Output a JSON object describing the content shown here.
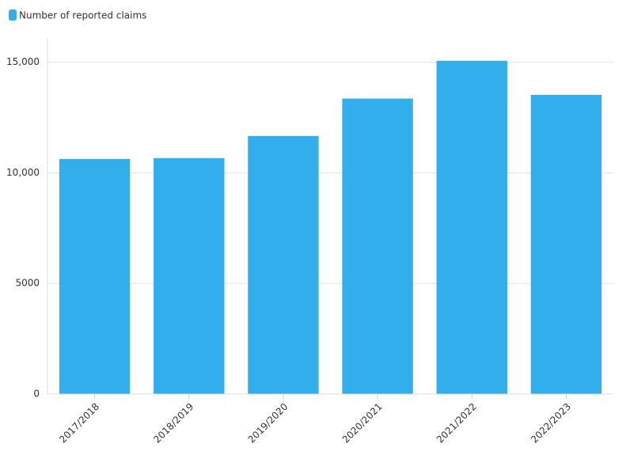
{
  "chart_data": {
    "type": "bar",
    "series": [
      {
        "name": "Number of reported claims",
        "color": "#31aeec",
        "values": [
          10630,
          10670,
          11670,
          13360,
          15070,
          13530
        ]
      }
    ],
    "categories": [
      "2017/2018",
      "2018/2019",
      "2019/2020",
      "2020/2021",
      "2021/2022",
      "2022/2023"
    ],
    "ylim": [
      0,
      16100
    ],
    "yticks": [
      0,
      5000,
      {
        "value": 10000,
        "label": "10,000"
      },
      {
        "value": 15000,
        "label": "15,000"
      }
    ],
    "grid": true,
    "legend": "top-left"
  }
}
